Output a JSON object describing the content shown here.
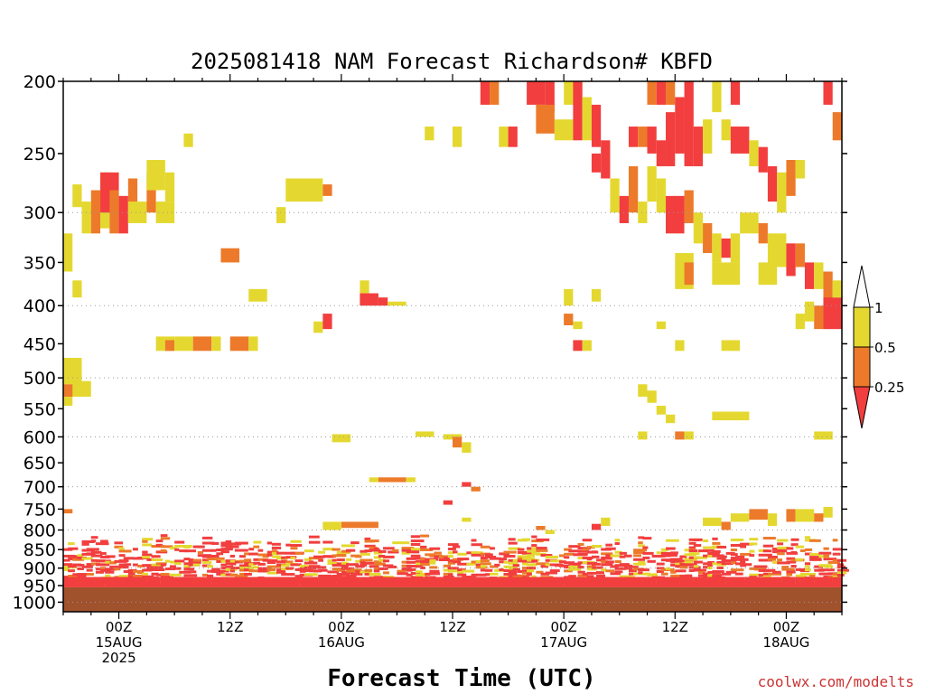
{
  "chart_data": {
    "type": "heatmap",
    "title": "2025081418 NAM Forecast Richardson# KBFD",
    "xlabel": "Forecast Time (UTC)",
    "ylabel": "",
    "credit": "coolwx.com/modelts",
    "y_scale": "log-pressure (inverted)",
    "ylim_hpa": [
      1030,
      200
    ],
    "y_ticks": [
      200,
      250,
      300,
      350,
      400,
      450,
      500,
      550,
      600,
      650,
      700,
      750,
      800,
      850,
      900,
      950,
      1000
    ],
    "y_tick_labels": [
      "200",
      "250",
      "300",
      "350",
      "400",
      "450",
      "500",
      "550",
      "600",
      "650",
      "700",
      "750",
      "800",
      "850",
      "900",
      "950",
      "1000"
    ],
    "gridlines_dotted_hpa": [
      300,
      400,
      500,
      600,
      700,
      800,
      900,
      1000
    ],
    "xlim_hours": [
      -6,
      78
    ],
    "x_ticks": [
      {
        "hour": 0,
        "line1": "00Z",
        "line2": "15AUG",
        "line3": "2025"
      },
      {
        "hour": 12,
        "line1": "12Z",
        "line2": "",
        "line3": ""
      },
      {
        "hour": 24,
        "line1": "00Z",
        "line2": "16AUG",
        "line3": ""
      },
      {
        "hour": 36,
        "line1": "12Z",
        "line2": "",
        "line3": ""
      },
      {
        "hour": 48,
        "line1": "00Z",
        "line2": "17AUG",
        "line3": ""
      },
      {
        "hour": 60,
        "line1": "12Z",
        "line2": "",
        "line3": ""
      },
      {
        "hour": 72,
        "line1": "00Z",
        "line2": "18AUG",
        "line3": ""
      }
    ],
    "legend": {
      "placement": "right",
      "levels": [
        1,
        0.5,
        0.25
      ],
      "labels": [
        "1",
        "0.5",
        "0.25"
      ],
      "colors": [
        "#ffffff",
        "#e4d830",
        "#ec7a2a",
        "#f23e3e"
      ]
    },
    "ground_color": "#a0522d",
    "ground_top_hpa": 955,
    "category_colors": {
      "y": "#e4d830",
      "o": "#ec7a2a",
      "r": "#f23e3e"
    },
    "cells_note": "each cell: [start_hour, end_hour, top_hpa, bottom_hpa, category] where y = 0.5-1, o = 0.25-0.5, r = below 0.25",
    "cells": [
      [
        -6,
        -5,
        320,
        360,
        "y"
      ],
      [
        -5,
        -4,
        370,
        390,
        "y"
      ],
      [
        -6,
        -4,
        470,
        510,
        "y"
      ],
      [
        -6,
        -4,
        510,
        530,
        "o"
      ],
      [
        -5,
        -3,
        505,
        530,
        "y"
      ],
      [
        -6,
        -5,
        530,
        545,
        "y"
      ],
      [
        -5,
        -4,
        275,
        295,
        "y"
      ],
      [
        -4,
        -3,
        290,
        320,
        "y"
      ],
      [
        -3,
        -2,
        280,
        320,
        "o"
      ],
      [
        -2,
        -1,
        265,
        315,
        "y"
      ],
      [
        -2,
        0,
        265,
        300,
        "r"
      ],
      [
        -1,
        0,
        280,
        320,
        "o"
      ],
      [
        0,
        1,
        285,
        320,
        "r"
      ],
      [
        1,
        2,
        270,
        300,
        "o"
      ],
      [
        1,
        3,
        290,
        310,
        "y"
      ],
      [
        3,
        4,
        265,
        300,
        "o"
      ],
      [
        3,
        5,
        255,
        280,
        "y"
      ],
      [
        4,
        6,
        290,
        310,
        "y"
      ],
      [
        5,
        6,
        265,
        290,
        "y"
      ],
      [
        7,
        8,
        235,
        245,
        "y"
      ],
      [
        4,
        6,
        440,
        460,
        "y"
      ],
      [
        5,
        6,
        445,
        460,
        "o"
      ],
      [
        6,
        8,
        440,
        460,
        "y"
      ],
      [
        8,
        10,
        440,
        460,
        "o"
      ],
      [
        10,
        11,
        440,
        460,
        "y"
      ],
      [
        12,
        14,
        440,
        460,
        "o"
      ],
      [
        14,
        15,
        440,
        460,
        "y"
      ],
      [
        11,
        13,
        335,
        350,
        "o"
      ],
      [
        14,
        16,
        380,
        395,
        "y"
      ],
      [
        17,
        18,
        295,
        310,
        "y"
      ],
      [
        18,
        22,
        270,
        290,
        "y"
      ],
      [
        22,
        23,
        275,
        285,
        "o"
      ],
      [
        21,
        22,
        420,
        435,
        "y"
      ],
      [
        22,
        23,
        410,
        430,
        "r"
      ],
      [
        26,
        27,
        370,
        385,
        "y"
      ],
      [
        26,
        28,
        385,
        400,
        "r"
      ],
      [
        28,
        29,
        390,
        400,
        "r"
      ],
      [
        29,
        31,
        395,
        400,
        "y"
      ],
      [
        23,
        25,
        595,
        610,
        "y"
      ],
      [
        27,
        28,
        680,
        690,
        "y"
      ],
      [
        28,
        31,
        680,
        690,
        "o"
      ],
      [
        31,
        32,
        680,
        690,
        "y"
      ],
      [
        32,
        34,
        590,
        600,
        "y"
      ],
      [
        33,
        34,
        230,
        240,
        "y"
      ],
      [
        36,
        37,
        230,
        245,
        "y"
      ],
      [
        35,
        37,
        595,
        605,
        "y"
      ],
      [
        36,
        37,
        600,
        620,
        "o"
      ],
      [
        37,
        38,
        610,
        630,
        "y"
      ],
      [
        37,
        38,
        690,
        700,
        "r"
      ],
      [
        38,
        39,
        700,
        710,
        "o"
      ],
      [
        35,
        36,
        730,
        740,
        "r"
      ],
      [
        37,
        38,
        770,
        780,
        "y"
      ],
      [
        39,
        40,
        200,
        215,
        "r"
      ],
      [
        40,
        41,
        200,
        215,
        "o"
      ],
      [
        41,
        42,
        230,
        245,
        "y"
      ],
      [
        42,
        43,
        230,
        245,
        "r"
      ],
      [
        44,
        46,
        200,
        215,
        "r"
      ],
      [
        46,
        47,
        200,
        220,
        "r"
      ],
      [
        45,
        47,
        215,
        235,
        "o"
      ],
      [
        47,
        49,
        225,
        240,
        "y"
      ],
      [
        48,
        50,
        200,
        215,
        "y"
      ],
      [
        49,
        50,
        200,
        240,
        "r"
      ],
      [
        50,
        51,
        210,
        240,
        "y"
      ],
      [
        51,
        52,
        215,
        245,
        "r"
      ],
      [
        51,
        52,
        250,
        265,
        "r"
      ],
      [
        52,
        53,
        240,
        270,
        "r"
      ],
      [
        53,
        54,
        270,
        300,
        "y"
      ],
      [
        54,
        55,
        285,
        310,
        "r"
      ],
      [
        55,
        56,
        260,
        300,
        "o"
      ],
      [
        56,
        57,
        290,
        310,
        "y"
      ],
      [
        57,
        58,
        260,
        290,
        "y"
      ],
      [
        57,
        58,
        200,
        215,
        "o"
      ],
      [
        58,
        59,
        200,
        215,
        "r"
      ],
      [
        59,
        60,
        200,
        215,
        "o"
      ],
      [
        55,
        56,
        230,
        245,
        "r"
      ],
      [
        56,
        57,
        230,
        245,
        "o"
      ],
      [
        57,
        58,
        230,
        250,
        "r"
      ],
      [
        58,
        59,
        240,
        260,
        "r"
      ],
      [
        59,
        60,
        220,
        260,
        "r"
      ],
      [
        60,
        61,
        210,
        250,
        "r"
      ],
      [
        61,
        62,
        200,
        260,
        "r"
      ],
      [
        62,
        63,
        230,
        260,
        "r"
      ],
      [
        63,
        64,
        225,
        250,
        "y"
      ],
      [
        64,
        65,
        200,
        220,
        "y"
      ],
      [
        65,
        66,
        225,
        240,
        "y"
      ],
      [
        66,
        67,
        200,
        215,
        "r"
      ],
      [
        66,
        68,
        230,
        250,
        "r"
      ],
      [
        68,
        69,
        240,
        260,
        "y"
      ],
      [
        69,
        70,
        245,
        265,
        "r"
      ],
      [
        70,
        71,
        260,
        290,
        "r"
      ],
      [
        71,
        72,
        265,
        300,
        "y"
      ],
      [
        72,
        73,
        255,
        285,
        "o"
      ],
      [
        73,
        74,
        255,
        270,
        "y"
      ],
      [
        76,
        77,
        200,
        215,
        "r"
      ],
      [
        77,
        78,
        220,
        240,
        "o"
      ],
      [
        58,
        59,
        270,
        300,
        "y"
      ],
      [
        59,
        61,
        285,
        320,
        "r"
      ],
      [
        61,
        62,
        280,
        310,
        "o"
      ],
      [
        62,
        63,
        300,
        330,
        "y"
      ],
      [
        63,
        64,
        310,
        340,
        "o"
      ],
      [
        64,
        65,
        320,
        350,
        "y"
      ],
      [
        65,
        66,
        325,
        345,
        "r"
      ],
      [
        66,
        67,
        320,
        350,
        "y"
      ],
      [
        67,
        69,
        300,
        320,
        "y"
      ],
      [
        69,
        70,
        310,
        330,
        "o"
      ],
      [
        70,
        72,
        320,
        355,
        "y"
      ],
      [
        72,
        73,
        330,
        365,
        "r"
      ],
      [
        73,
        74,
        330,
        355,
        "o"
      ],
      [
        74,
        75,
        350,
        380,
        "r"
      ],
      [
        75,
        76,
        350,
        380,
        "y"
      ],
      [
        76,
        77,
        360,
        400,
        "o"
      ],
      [
        76,
        78,
        390,
        430,
        "r"
      ],
      [
        75,
        76,
        400,
        430,
        "o"
      ],
      [
        74,
        75,
        395,
        420,
        "y"
      ],
      [
        77,
        78,
        370,
        390,
        "y"
      ],
      [
        60,
        62,
        340,
        380,
        "y"
      ],
      [
        61,
        62,
        350,
        375,
        "o"
      ],
      [
        64,
        67,
        350,
        375,
        "y"
      ],
      [
        69,
        71,
        350,
        375,
        "y"
      ],
      [
        48,
        49,
        380,
        400,
        "y"
      ],
      [
        48,
        49,
        410,
        425,
        "o"
      ],
      [
        49,
        50,
        420,
        430,
        "y"
      ],
      [
        49,
        50,
        445,
        460,
        "r"
      ],
      [
        50,
        51,
        445,
        460,
        "y"
      ],
      [
        51,
        52,
        380,
        395,
        "y"
      ],
      [
        58,
        59,
        420,
        430,
        "y"
      ],
      [
        60,
        61,
        445,
        460,
        "y"
      ],
      [
        65,
        67,
        445,
        460,
        "y"
      ],
      [
        73,
        74,
        410,
        430,
        "y"
      ],
      [
        56,
        57,
        510,
        530,
        "y"
      ],
      [
        57,
        58,
        520,
        540,
        "y"
      ],
      [
        58,
        59,
        545,
        560,
        "y"
      ],
      [
        59,
        60,
        560,
        575,
        "y"
      ],
      [
        56,
        57,
        590,
        605,
        "y"
      ],
      [
        60,
        61,
        590,
        605,
        "o"
      ],
      [
        61,
        62,
        590,
        605,
        "y"
      ],
      [
        64,
        68,
        555,
        570,
        "y"
      ],
      [
        75,
        77,
        590,
        605,
        "y"
      ],
      [
        -6,
        -5,
        750,
        760,
        "o"
      ],
      [
        45,
        46,
        790,
        800,
        "o"
      ],
      [
        46,
        47,
        800,
        810,
        "y"
      ],
      [
        51,
        52,
        785,
        800,
        "r"
      ],
      [
        52,
        53,
        770,
        790,
        "y"
      ],
      [
        63,
        65,
        770,
        790,
        "y"
      ],
      [
        65,
        66,
        780,
        800,
        "o"
      ],
      [
        66,
        68,
        760,
        780,
        "y"
      ],
      [
        68,
        70,
        750,
        775,
        "o"
      ],
      [
        70,
        71,
        760,
        790,
        "y"
      ],
      [
        72,
        73,
        750,
        780,
        "o"
      ],
      [
        73,
        75,
        750,
        780,
        "y"
      ],
      [
        75,
        76,
        760,
        780,
        "o"
      ],
      [
        76,
        77,
        745,
        770,
        "y"
      ],
      [
        24,
        28,
        780,
        795,
        "o"
      ],
      [
        22,
        24,
        780,
        800,
        "y"
      ]
    ]
  }
}
